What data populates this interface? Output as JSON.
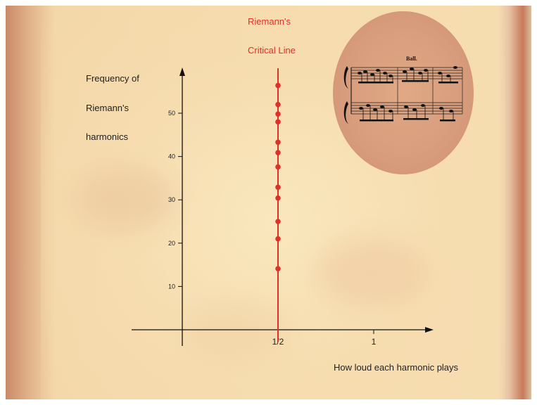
{
  "chart_data": {
    "type": "scatter",
    "title": "",
    "ylabel_lines": [
      "Frequency of",
      "Riemann's",
      "harmonics"
    ],
    "xlabel": "How loud each harmonic plays",
    "x_ticks": [
      "1/2",
      "1"
    ],
    "y_ticks": [
      10,
      20,
      30,
      40,
      50
    ],
    "ylim": [
      0,
      55
    ],
    "critical_line": {
      "x": 0.5,
      "label_lines": [
        "Riemann's",
        "Critical Line"
      ],
      "color": "#e0302a"
    },
    "series": [
      {
        "x": [
          0.5,
          0.5,
          0.5,
          0.5,
          0.5,
          0.5,
          0.5,
          0.5,
          0.5,
          0.5,
          0.5,
          0.5
        ],
        "y": [
          14.1,
          21.0,
          25.0,
          30.4,
          32.9,
          37.6,
          40.9,
          43.3,
          48.0,
          49.8,
          52.0,
          56.4
        ]
      }
    ]
  },
  "inset": {
    "text": "Ball.",
    "icon": "sheet-music-icon"
  }
}
